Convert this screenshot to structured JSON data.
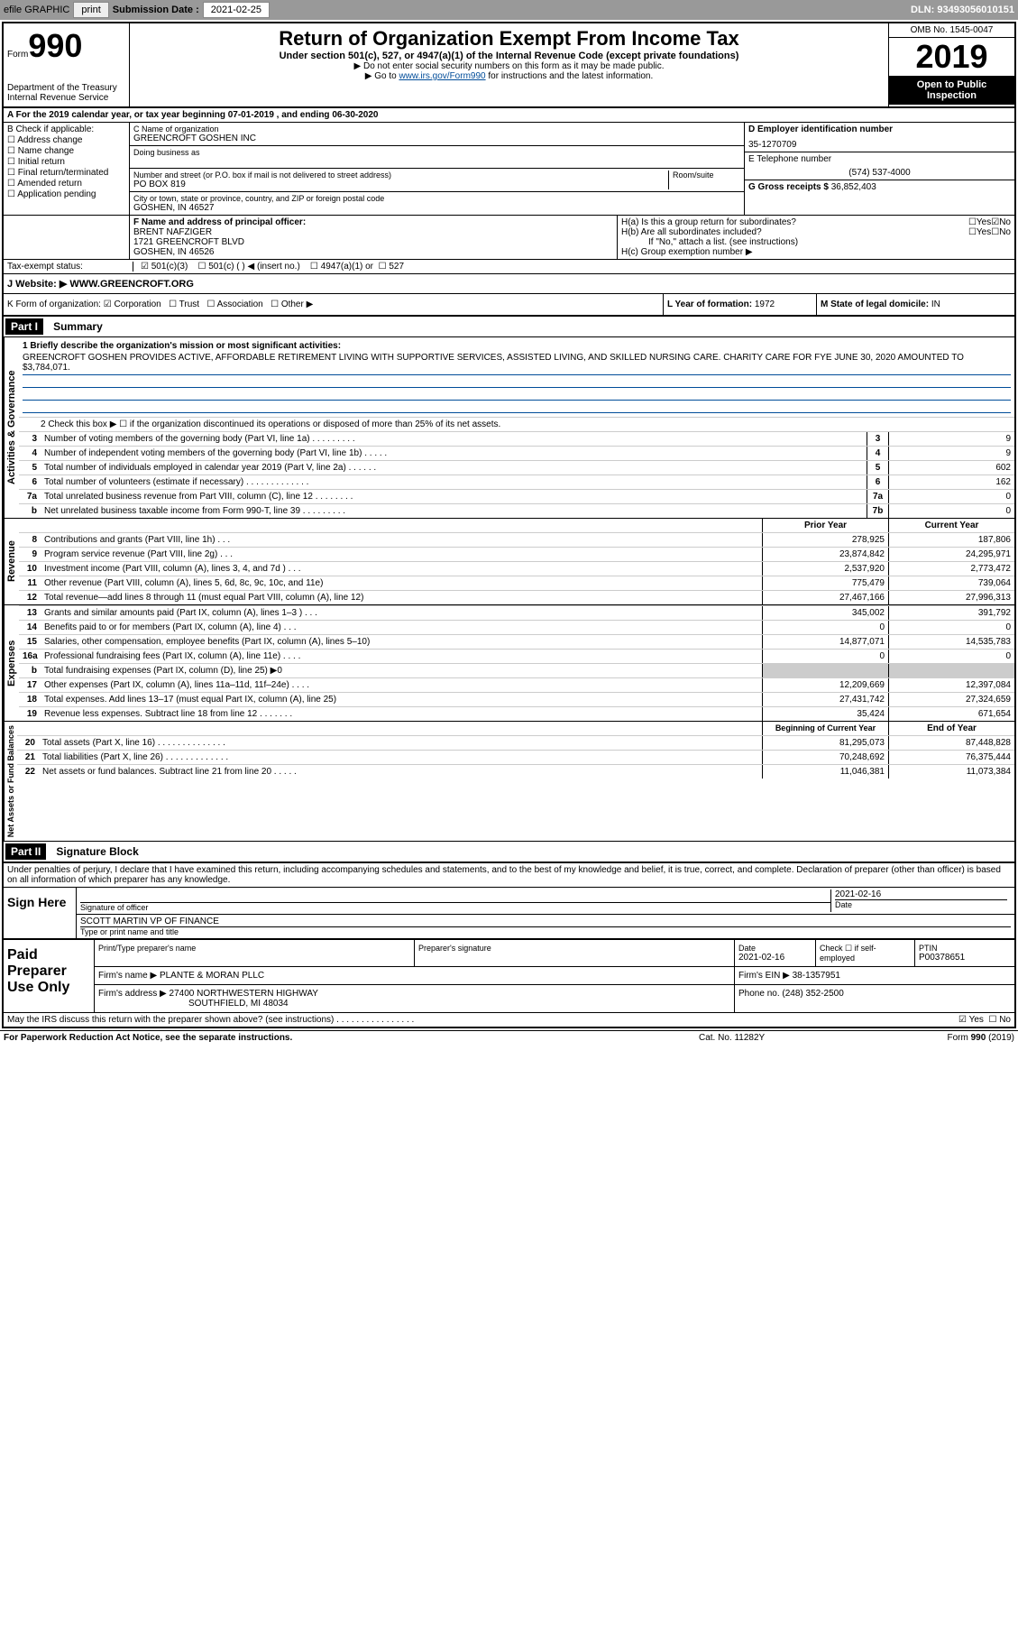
{
  "toolbar": {
    "efile": "efile GRAPHIC",
    "print": "print",
    "sub_label": "Submission Date :",
    "sub_date": "2021-02-25",
    "dln": "DLN: 93493056010151"
  },
  "header": {
    "form_word": "Form",
    "form_num": "990",
    "dept": "Department of the Treasury\nInternal Revenue Service",
    "title": "Return of Organization Exempt From Income Tax",
    "subtitle": "Under section 501(c), 527, or 4947(a)(1) of the Internal Revenue Code (except private foundations)",
    "note1": "▶ Do not enter social security numbers on this form as it may be made public.",
    "note2_pre": "▶ Go to ",
    "note2_link": "www.irs.gov/Form990",
    "note2_post": " for instructions and the latest information.",
    "omb": "OMB No. 1545-0047",
    "year": "2019",
    "open": "Open to Public Inspection"
  },
  "period": "A For the 2019 calendar year, or tax year beginning 07-01-2019    , and ending 06-30-2020",
  "section_b": {
    "label": "B Check if applicable:",
    "items": [
      "Address change",
      "Name change",
      "Initial return",
      "Final return/terminated",
      "Amended return",
      "Application pending"
    ]
  },
  "section_c": {
    "name_label": "C Name of organization",
    "name": "GREENCROFT GOSHEN INC",
    "dba_label": "Doing business as",
    "addr_label": "Number and street (or P.O. box if mail is not delivered to street address)",
    "room_label": "Room/suite",
    "addr": "PO BOX 819",
    "city_label": "City or town, state or province, country, and ZIP or foreign postal code",
    "city": "GOSHEN, IN  46527"
  },
  "section_d": {
    "ein_label": "D Employer identification number",
    "ein": "35-1270709",
    "phone_label": "E Telephone number",
    "phone": "(574) 537-4000",
    "gross_label": "G Gross receipts $",
    "gross": "36,852,403"
  },
  "section_f": {
    "label": "F  Name and address of principal officer:",
    "name": "BRENT NAFZIGER",
    "addr1": "1721 GREENCROFT BLVD",
    "addr2": "GOSHEN, IN  46526"
  },
  "section_h": {
    "ha": "H(a)  Is this a group return for subordinates?",
    "hb": "H(b)  Are all subordinates included?",
    "hb_note": "If \"No,\" attach a list. (see instructions)",
    "hc": "H(c)  Group exemption number ▶",
    "yes": "Yes",
    "no": "No"
  },
  "tax_exempt": {
    "label": "Tax-exempt status:",
    "opt1": "501(c)(3)",
    "opt2": "501(c) (  ) ◀ (insert no.)",
    "opt3": "4947(a)(1) or",
    "opt4": "527"
  },
  "website": {
    "label": "J    Website: ▶",
    "url": "WWW.GREENCROFT.ORG"
  },
  "section_k": {
    "label": "K Form of organization:",
    "corp": "Corporation",
    "trust": "Trust",
    "assoc": "Association",
    "other": "Other ▶",
    "l_label": "L Year of formation:",
    "l_val": "1972",
    "m_label": "M State of legal domicile:",
    "m_val": "IN"
  },
  "part1": {
    "header": "Part I",
    "title": "Summary",
    "q1": "1  Briefly describe the organization's mission or most significant activities:",
    "mission": "GREENCROFT GOSHEN PROVIDES ACTIVE, AFFORDABLE RETIREMENT LIVING WITH SUPPORTIVE SERVICES, ASSISTED LIVING, AND SKILLED NURSING CARE. CHARITY CARE FOR FYE JUNE 30, 2020 AMOUNTED TO $3,784,071.",
    "q2": "2    Check this box ▶ ☐  if the organization discontinued its operations or disposed of more than 25% of its net assets.",
    "lines_ag": [
      {
        "n": "3",
        "d": "Number of voting members of the governing body (Part VI, line 1a)  .    .    .    .    .    .    .    .    .",
        "b": "3",
        "v": "9"
      },
      {
        "n": "4",
        "d": "Number of independent voting members of the governing body (Part VI, line 1b)  .    .    .    .    .",
        "b": "4",
        "v": "9"
      },
      {
        "n": "5",
        "d": "Total number of individuals employed in calendar year 2019 (Part V, line 2a)  .    .    .    .    .    .",
        "b": "5",
        "v": "602"
      },
      {
        "n": "6",
        "d": "Total number of volunteers (estimate if necessary)    .    .    .    .    .    .    .    .    .    .    .    .    .",
        "b": "6",
        "v": "162"
      },
      {
        "n": "7a",
        "d": "Total unrelated business revenue from Part VIII, column (C), line 12  .    .    .    .    .    .    .    .",
        "b": "7a",
        "v": "0"
      },
      {
        "n": "b",
        "d": "Net unrelated business taxable income from Form 990-T, line 39   .    .    .    .    .    .    .    .    .",
        "b": "7b",
        "v": "0"
      }
    ],
    "prior_hdr": "Prior Year",
    "current_hdr": "Current Year",
    "lines_rev": [
      {
        "n": "8",
        "d": "Contributions and grants (Part VIII, line 1h)   .    .    .",
        "p": "278,925",
        "c": "187,806"
      },
      {
        "n": "9",
        "d": "Program service revenue (Part VIII, line 2g)   .    .    .",
        "p": "23,874,842",
        "c": "24,295,971"
      },
      {
        "n": "10",
        "d": "Investment income (Part VIII, column (A), lines 3, 4, and 7d )   .    .    .",
        "p": "2,537,920",
        "c": "2,773,472"
      },
      {
        "n": "11",
        "d": "Other revenue (Part VIII, column (A), lines 5, 6d, 8c, 9c, 10c, and 11e)",
        "p": "775,479",
        "c": "739,064"
      },
      {
        "n": "12",
        "d": "Total revenue—add lines 8 through 11 (must equal Part VIII, column (A), line 12)",
        "p": "27,467,166",
        "c": "27,996,313"
      }
    ],
    "lines_exp": [
      {
        "n": "13",
        "d": "Grants and similar amounts paid (Part IX, column (A), lines 1–3 )  .    .    .",
        "p": "345,002",
        "c": "391,792"
      },
      {
        "n": "14",
        "d": "Benefits paid to or for members (Part IX, column (A), line 4)   .    .    .",
        "p": "0",
        "c": "0"
      },
      {
        "n": "15",
        "d": "Salaries, other compensation, employee benefits (Part IX, column (A), lines 5–10)",
        "p": "14,877,071",
        "c": "14,535,783"
      },
      {
        "n": "16a",
        "d": "Professional fundraising fees (Part IX, column (A), line 11e)  .    .    .    .",
        "p": "0",
        "c": "0"
      },
      {
        "n": "b",
        "d": "Total fundraising expenses (Part IX, column (D), line 25) ▶0",
        "p": "",
        "c": "",
        "shade": true
      },
      {
        "n": "17",
        "d": "Other expenses (Part IX, column (A), lines 11a–11d, 11f–24e)  .    .    .    .",
        "p": "12,209,669",
        "c": "12,397,084"
      },
      {
        "n": "18",
        "d": "Total expenses. Add lines 13–17 (must equal Part IX, column (A), line 25)",
        "p": "27,431,742",
        "c": "27,324,659"
      },
      {
        "n": "19",
        "d": "Revenue less expenses. Subtract line 18 from line 12  .    .    .    .    .    .    .",
        "p": "35,424",
        "c": "671,654"
      }
    ],
    "boy_hdr": "Beginning of Current Year",
    "eoy_hdr": "End of Year",
    "lines_na": [
      {
        "n": "20",
        "d": "Total assets (Part X, line 16)  .    .    .    .    .    .    .    .    .    .    .    .    .    .",
        "p": "81,295,073",
        "c": "87,448,828"
      },
      {
        "n": "21",
        "d": "Total liabilities (Part X, line 26)  .    .    .    .    .    .    .    .    .    .    .    .    .",
        "p": "70,248,692",
        "c": "76,375,444"
      },
      {
        "n": "22",
        "d": "Net assets or fund balances. Subtract line 21 from line 20  .    .    .    .    .",
        "p": "11,046,381",
        "c": "11,073,384"
      }
    ],
    "vert_ag": "Activities & Governance",
    "vert_rev": "Revenue",
    "vert_exp": "Expenses",
    "vert_na": "Net Assets or Fund Balances"
  },
  "part2": {
    "header": "Part II",
    "title": "Signature Block",
    "declare": "Under penalties of perjury, I declare that I have examined this return, including accompanying schedules and statements, and to the best of my knowledge and belief, it is true, correct, and complete. Declaration of preparer (other than officer) is based on all information of which preparer has any knowledge.",
    "sign_here": "Sign Here",
    "sig_officer": "Signature of officer",
    "sig_date": "2021-02-16",
    "date_label": "Date",
    "officer_name": "SCOTT MARTIN  VP OF FINANCE",
    "type_label": "Type or print name and title",
    "paid_label": "Paid Preparer Use Only",
    "prep_name_label": "Print/Type preparer's name",
    "prep_sig_label": "Preparer's signature",
    "prep_date": "2021-02-16",
    "check_label": "Check ☐  if self-employed",
    "ptin_label": "PTIN",
    "ptin": "P00378651",
    "firm_name_label": "Firm's name    ▶",
    "firm_name": "PLANTE & MORAN PLLC",
    "firm_ein_label": "Firm's EIN ▶",
    "firm_ein": "38-1357951",
    "firm_addr_label": "Firm's address ▶",
    "firm_addr1": "27400 NORTHWESTERN HIGHWAY",
    "firm_addr2": "SOUTHFIELD, MI  48034",
    "phone_label": "Phone no.",
    "phone": "(248) 352-2500",
    "discuss": "May the IRS discuss this return with the preparer shown above? (see instructions)    .    .    .    .    .    .    .    .    .    .    .    .    .    .    .    .",
    "yes": "Yes",
    "no": "No"
  },
  "footer": {
    "left": "For Paperwork Reduction Act Notice, see the separate instructions.",
    "mid": "Cat. No. 11282Y",
    "right": "Form 990 (2019)"
  }
}
